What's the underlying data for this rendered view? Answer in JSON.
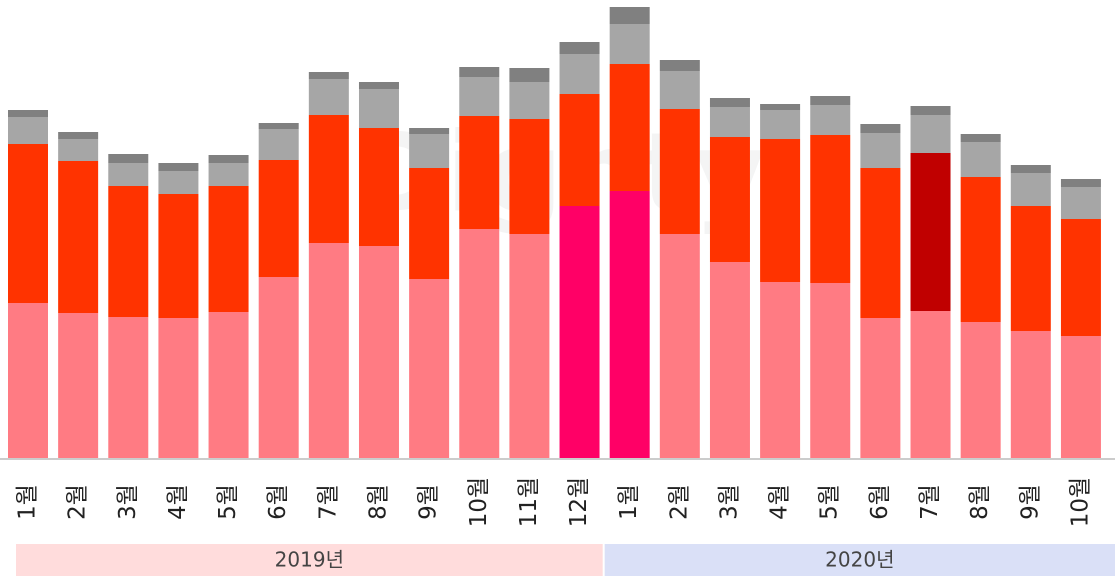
{
  "chart_data": {
    "type": "stacked_bar",
    "watermark": "Dighty",
    "categories": [
      "1월",
      "2월",
      "3월",
      "4월",
      "5월",
      "6월",
      "7월",
      "8월",
      "9월",
      "10월",
      "11월",
      "12월",
      "1월",
      "2월",
      "3월",
      "4월",
      "5월",
      "6월",
      "7월",
      "8월",
      "9월",
      "10월"
    ],
    "groups": [
      {
        "label": "2019년",
        "count": 12,
        "color": "#ffdcdc"
      },
      {
        "label": "2020년",
        "count": 10,
        "color": "#dae0f7"
      }
    ],
    "series": [
      {
        "color": "#ff7b83",
        "values": [
          155,
          145,
          141,
          140,
          146,
          181,
          215,
          212,
          179,
          229,
          224,
          252,
          267,
          224,
          196,
          176,
          175,
          140,
          147,
          136,
          127,
          122
        ],
        "colors": [
          "#ff7b83",
          "#ff7b83",
          "#ff7b83",
          "#ff7b83",
          "#ff7b83",
          "#ff7b83",
          "#ff7b83",
          "#ff7b83",
          "#ff7b83",
          "#ff7b83",
          "#ff7b83",
          "#ff0066",
          "#ff0066",
          "#ff7b83",
          "#ff7b83",
          "#ff7b83",
          "#ff7b83",
          "#ff7b83",
          "#ff7b83",
          "#ff7b83",
          "#ff7b83",
          "#ff7b83"
        ]
      },
      {
        "color": "#ff3300",
        "values": [
          159,
          152,
          131,
          124,
          126,
          117,
          128,
          118,
          111,
          113,
          115,
          112,
          127,
          125,
          125,
          143,
          148,
          150,
          158,
          145,
          125,
          117
        ],
        "colors": [
          "#ff3300",
          "#ff3300",
          "#ff3300",
          "#ff3300",
          "#ff3300",
          "#ff3300",
          "#ff3300",
          "#ff3300",
          "#ff3300",
          "#ff3300",
          "#ff3300",
          "#ff3300",
          "#ff3300",
          "#ff3300",
          "#ff3300",
          "#ff3300",
          "#ff3300",
          "#ff3300",
          "#c00000",
          "#ff3300",
          "#ff3300",
          "#ff3300"
        ]
      },
      {
        "color": "#a6a6a6",
        "values": [
          27,
          22,
          23,
          23,
          23,
          31,
          36,
          39,
          34,
          39,
          37,
          40,
          40,
          38,
          30,
          29,
          30,
          35,
          38,
          35,
          33,
          32
        ]
      },
      {
        "color": "#808080",
        "values": [
          7,
          7,
          9,
          8,
          8,
          6,
          7,
          7,
          6,
          10,
          14,
          12,
          17,
          11,
          9,
          6,
          9,
          9,
          9,
          8,
          8,
          8
        ]
      }
    ]
  }
}
